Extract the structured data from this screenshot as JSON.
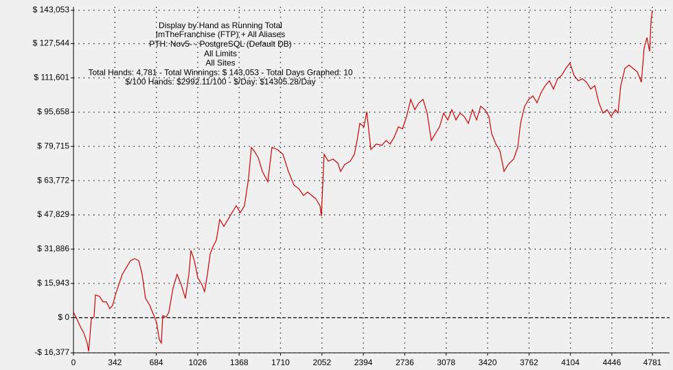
{
  "chart_data": {
    "type": "line",
    "title": "Display by Hand as Running Total",
    "subtitle": [
      "ImTheFranchise (FTP) + All Aliases",
      "PTH: Nov5- - PostgreSQL (Default DB)",
      "All Limits",
      "All Sites",
      "Total Hands: 4,781 - Total Winnings: $ 143,053 - Total Days Graphed: 10",
      "$/100 Hands: $2992.11/100 - $/Day: $14305.28/Day"
    ],
    "grid": true,
    "xlim": [
      0,
      4781
    ],
    "ylim": [
      -16377,
      143053
    ],
    "xticks": [
      0,
      342,
      684,
      1026,
      1368,
      1710,
      2052,
      2394,
      2736,
      3078,
      3420,
      3762,
      4104,
      4446,
      4781
    ],
    "yticks": [
      {
        "value": -16377,
        "label": "-$ 16,377"
      },
      {
        "value": 0,
        "label": "$ 0"
      },
      {
        "value": 15943,
        "label": "$ 15,943"
      },
      {
        "value": 31886,
        "label": "$ 31,886"
      },
      {
        "value": 47829,
        "label": "$ 47,829"
      },
      {
        "value": 63772,
        "label": "$ 63,772"
      },
      {
        "value": 79715,
        "label": "$ 79,715"
      },
      {
        "value": 95658,
        "label": "$ 95,658"
      },
      {
        "value": 111601,
        "label": "$ 111,601"
      },
      {
        "value": 127544,
        "label": "$ 127,544"
      },
      {
        "value": 143053,
        "label": "$ 143,053"
      }
    ],
    "series": [
      {
        "color": "#cc0000",
        "x": [
          0,
          28,
          62,
          85,
          113,
          125,
          136,
          147,
          170,
          181,
          215,
          244,
          272,
          300,
          323,
          346,
          374,
          403,
          437,
          471,
          505,
          539,
          567,
          595,
          630,
          664,
          686,
          709,
          726,
          737,
          766,
          788,
          822,
          856,
          890,
          924,
          953,
          970,
          998,
          1027,
          1061,
          1083,
          1106,
          1129,
          1151,
          1180,
          1208,
          1242,
          1276,
          1310,
          1344,
          1378,
          1412,
          1446,
          1469,
          1492,
          1526,
          1560,
          1605,
          1639,
          1684,
          1730,
          1775,
          1821,
          1860,
          1900,
          1934,
          1968,
          2002,
          2036,
          2047,
          2070,
          2104,
          2144,
          2184,
          2206,
          2240,
          2286,
          2320,
          2342,
          2365,
          2399,
          2422,
          2456,
          2501,
          2546,
          2581,
          2615,
          2649,
          2683,
          2717,
          2751,
          2785,
          2819,
          2853,
          2887,
          2921,
          2955,
          2989,
          3023,
          3057,
          3091,
          3125,
          3159,
          3193,
          3227,
          3261,
          3295,
          3329,
          3363,
          3397,
          3431,
          3454,
          3488,
          3522,
          3556,
          3590,
          3635,
          3669,
          3692,
          3726,
          3760,
          3794,
          3828,
          3862,
          3896,
          3930,
          3964,
          3998,
          4032,
          4066,
          4100,
          4134,
          4169,
          4203,
          4237,
          4271,
          4305,
          4339,
          4373,
          4407,
          4441,
          4475,
          4497,
          4520,
          4554,
          4588,
          4622,
          4656,
          4690,
          4713,
          4736,
          4758,
          4770,
          4781
        ],
        "values": [
          2556,
          -639,
          -4793,
          -7029,
          -11822,
          -15656,
          -8627,
          -639,
          320,
          10544,
          9905,
          7349,
          7349,
          4154,
          5751,
          10544,
          15336,
          20129,
          23324,
          26519,
          27477,
          26519,
          20129,
          8946,
          5751,
          959,
          -2237,
          -10224,
          -11822,
          959,
          320,
          2556,
          13739,
          20129,
          15336,
          8946,
          20129,
          31311,
          26519,
          18531,
          15336,
          12141,
          20129,
          29714,
          32909,
          36104,
          45689,
          42494,
          45689,
          48884,
          52079,
          48884,
          52079,
          64859,
          79236,
          77639,
          74444,
          68054,
          63261,
          79236,
          78278,
          76041,
          68054,
          61664,
          60066,
          56871,
          58469,
          56871,
          55274,
          52079,
          47286,
          76041,
          72846,
          73805,
          71888,
          68054,
          71249,
          72846,
          76041,
          82431,
          90419,
          88821,
          95850,
          78278,
          80834,
          80195,
          82431,
          80834,
          84029,
          88821,
          87863,
          93614,
          101601,
          96809,
          100004,
          101601,
          95211,
          82431,
          85626,
          88821,
          95211,
          92016,
          96809,
          92016,
          95211,
          93614,
          90419,
          96809,
          92016,
          98406,
          96809,
          93614,
          85626,
          80834,
          77639,
          68054,
          71249,
          73805,
          79236,
          90419,
          98406,
          101601,
          103199,
          100004,
          104796,
          107991,
          110228,
          106394,
          111186,
          112784,
          115979,
          118535,
          112784,
          110228,
          111186,
          109589,
          106394,
          107991,
          100004,
          95211,
          96809,
          93614,
          96809,
          95211,
          107991,
          115979,
          117576,
          115979,
          114381,
          109589,
          125564,
          130356,
          123966,
          138344,
          143053
        ]
      }
    ]
  }
}
